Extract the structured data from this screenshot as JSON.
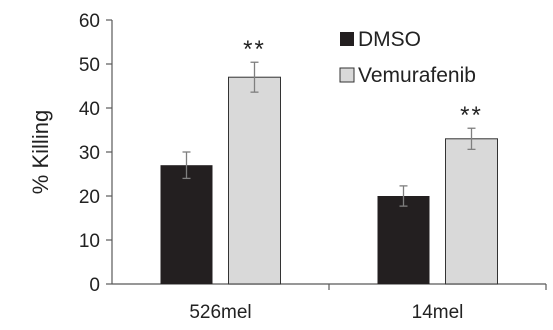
{
  "chart_data": {
    "type": "bar",
    "categories": [
      "526mel",
      "14mel"
    ],
    "series": [
      {
        "name": "DMSO",
        "values": [
          27,
          20
        ],
        "errors": [
          3,
          2.3
        ],
        "color": "#231f20"
      },
      {
        "name": "Vemurafenib",
        "values": [
          47,
          33
        ],
        "errors": [
          3.4,
          2.4
        ],
        "color": "#d9d9d9"
      }
    ],
    "annotations": [
      {
        "text": "**",
        "category": "526mel",
        "series": "Vemurafenib"
      },
      {
        "text": "**",
        "category": "14mel",
        "series": "Vemurafenib"
      }
    ],
    "title": "",
    "xlabel": "",
    "ylabel": "% Killing",
    "ylim": [
      0,
      60
    ],
    "yticks": [
      0,
      10,
      20,
      30,
      40,
      50,
      60
    ],
    "grid": false,
    "legend": "top-right"
  }
}
